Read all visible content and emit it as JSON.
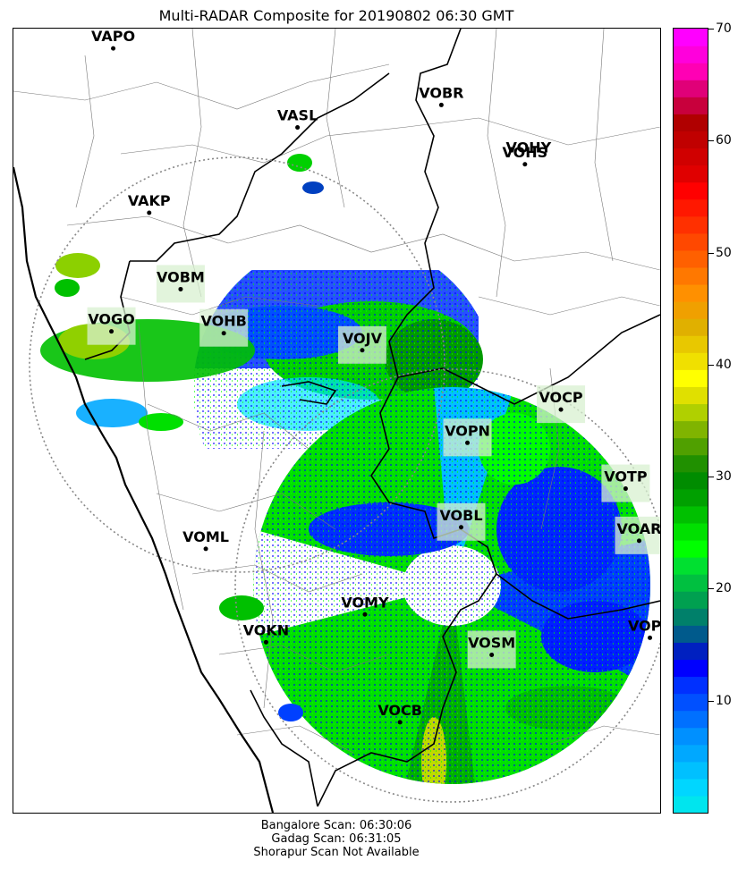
{
  "title": "Multi-RADAR Composite for 20190802 06:30 GMT",
  "colorbar": {
    "min": 0,
    "max": 70,
    "ticks": [
      "10",
      "20",
      "30",
      "40",
      "50",
      "60",
      "70"
    ],
    "colors": [
      "#00e5ee",
      "#00d6ff",
      "#00c0ff",
      "#00a8ff",
      "#0090ff",
      "#0070ff",
      "#0050ff",
      "#0030ff",
      "#0000ff",
      "#0020c0",
      "#005a8c",
      "#00806a",
      "#00a050",
      "#00c040",
      "#00e030",
      "#00ff00",
      "#00e000",
      "#00c000",
      "#00a000",
      "#008c00",
      "#209000",
      "#50a000",
      "#80b400",
      "#b0d000",
      "#e0e000",
      "#ffff00",
      "#f0e000",
      "#e8c800",
      "#e0b000",
      "#f0a000",
      "#ff9000",
      "#ff7800",
      "#ff6000",
      "#ff4800",
      "#ff3000",
      "#ff1800",
      "#ff0000",
      "#e00000",
      "#d00000",
      "#c00000",
      "#b00000",
      "#c8003c",
      "#e00078",
      "#ff00b4",
      "#ff00dc",
      "#ff00ff"
    ]
  },
  "stations": [
    {
      "code": "VAPO",
      "lon": 73.85,
      "lat": 18.53,
      "shaded": false
    },
    {
      "code": "VASL",
      "lon": 75.9,
      "lat": 17.65,
      "shaded": false
    },
    {
      "code": "VOBR",
      "lon": 77.5,
      "lat": 17.9,
      "shaded": false
    },
    {
      "code": "VOHY",
      "lon": 78.47,
      "lat": 17.45,
      "shaded": false,
      "label_only": true
    },
    {
      "code": "VOHS",
      "lon": 78.43,
      "lat": 17.24,
      "shaded": false
    },
    {
      "code": "VAKP",
      "lon": 74.25,
      "lat": 16.7,
      "shaded": false
    },
    {
      "code": "VOBM",
      "lon": 74.6,
      "lat": 15.85,
      "shaded": true
    },
    {
      "code": "VOGO",
      "lon": 73.83,
      "lat": 15.38,
      "shaded": true
    },
    {
      "code": "VOHB",
      "lon": 75.08,
      "lat": 15.36,
      "shaded": true
    },
    {
      "code": "VOJV",
      "lon": 76.62,
      "lat": 15.17,
      "shaded": true
    },
    {
      "code": "VOCP",
      "lon": 78.83,
      "lat": 14.51,
      "shaded": true
    },
    {
      "code": "VOPN",
      "lon": 77.79,
      "lat": 14.14,
      "shaded": true
    },
    {
      "code": "VOTP",
      "lon": 79.55,
      "lat": 13.63,
      "shaded": true
    },
    {
      "code": "VOBL",
      "lon": 77.72,
      "lat": 13.2,
      "shaded": true
    },
    {
      "code": "VOAR",
      "lon": 79.7,
      "lat": 13.05,
      "shaded": true
    },
    {
      "code": "VOML",
      "lon": 74.88,
      "lat": 12.96,
      "shaded": false
    },
    {
      "code": "VOMY",
      "lon": 76.65,
      "lat": 12.23,
      "shaded": false
    },
    {
      "code": "VOKN",
      "lon": 75.55,
      "lat": 11.92,
      "shaded": false
    },
    {
      "code": "VOPC",
      "lon": 79.82,
      "lat": 11.97,
      "shaded": false
    },
    {
      "code": "VOSM",
      "lon": 78.06,
      "lat": 11.78,
      "shaded": true
    },
    {
      "code": "VOCB",
      "lon": 77.04,
      "lat": 11.03,
      "shaded": false
    }
  ],
  "radars": [
    {
      "name": "Gadag",
      "lon": 75.65,
      "lat": 15.42,
      "range_deg": 4.2
    },
    {
      "name": "Bangalore",
      "lon": 77.6,
      "lat": 12.98,
      "range_deg": 2.6
    }
  ],
  "footer": [
    "Bangalore Scan: 06:30:06",
    "Gadag Scan: 06:31:05",
    "Shorapur Scan Not Available"
  ]
}
